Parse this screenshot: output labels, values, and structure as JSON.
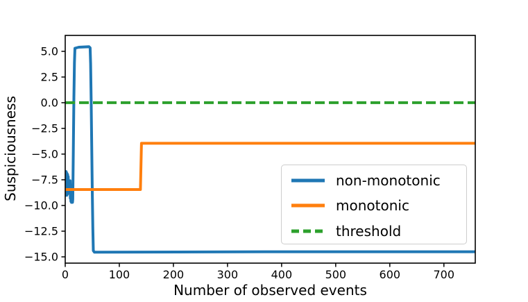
{
  "figure": {
    "background": "#ffffff",
    "spine_color": "#000000",
    "tick_color": "#000000"
  },
  "chart_data": {
    "type": "line",
    "title": "",
    "xlabel": "Number of observed events",
    "ylabel": "Suspiciousness",
    "xlim": [
      0,
      758
    ],
    "ylim": [
      -15.61,
      6.55
    ],
    "xticks": [
      0,
      100,
      200,
      300,
      400,
      500,
      600,
      700
    ],
    "xtick_labels": [
      "0",
      "100",
      "200",
      "300",
      "400",
      "500",
      "600",
      "700"
    ],
    "yticks": [
      5.0,
      2.5,
      0.0,
      -2.5,
      -5.0,
      -7.5,
      -10.0,
      -12.5,
      -15.0
    ],
    "ytick_labels": [
      "5.0",
      "2.5",
      "0.0",
      "−2.5",
      "−5.0",
      "−7.5",
      "−10.0",
      "−12.5",
      "−15.0"
    ],
    "grid": false,
    "legend": {
      "position": "inside center-right",
      "items": [
        {
          "label": "non-monotonic",
          "color": "#1f77b4",
          "dash": "solid"
        },
        {
          "label": "monotonic",
          "color": "#ff7f0e",
          "dash": "solid"
        },
        {
          "label": "threshold",
          "color": "#2ca02c",
          "dash": "dashed"
        }
      ]
    },
    "series": [
      {
        "name": "non-monotonic",
        "color": "#1f77b4",
        "style": "solid",
        "points": [
          [
            0,
            -8.4
          ],
          [
            0.5,
            -7.0
          ],
          [
            1,
            -9.0
          ],
          [
            1.5,
            -6.7
          ],
          [
            2,
            -8.8
          ],
          [
            2.5,
            -6.8
          ],
          [
            3,
            -9.0
          ],
          [
            3.5,
            -6.9
          ],
          [
            4,
            -8.9
          ],
          [
            4.5,
            -7.0
          ],
          [
            5,
            -8.8
          ],
          [
            5.5,
            -7.2
          ],
          [
            6,
            -8.5
          ],
          [
            7,
            -7.9
          ],
          [
            8,
            -8.3
          ],
          [
            9,
            -7.6
          ],
          [
            9.5,
            -9.3
          ],
          [
            10,
            -8.0
          ],
          [
            10.5,
            -9.6
          ],
          [
            11,
            -8.2
          ],
          [
            11.5,
            -9.7
          ],
          [
            12,
            -8.6
          ],
          [
            12.5,
            -9.6
          ],
          [
            13,
            -9.0
          ],
          [
            13.5,
            -9.7
          ],
          [
            14,
            -9.4
          ],
          [
            15,
            -4.5
          ],
          [
            16,
            0.5
          ],
          [
            17,
            3.9
          ],
          [
            18,
            5.3
          ],
          [
            25,
            5.4
          ],
          [
            44,
            5.45
          ],
          [
            46,
            5.35
          ],
          [
            47,
            3.8
          ],
          [
            48,
            0.2
          ],
          [
            49,
            -4.2
          ],
          [
            50,
            -8.6
          ],
          [
            51,
            -12.2
          ],
          [
            52,
            -14.4
          ],
          [
            54,
            -14.55
          ],
          [
            400,
            -14.5
          ],
          [
            758,
            -14.5
          ]
        ]
      },
      {
        "name": "monotonic",
        "color": "#ff7f0e",
        "style": "solid",
        "points": [
          [
            0,
            -8.45
          ],
          [
            139,
            -8.45
          ],
          [
            141,
            -3.95
          ],
          [
            758,
            -3.95
          ]
        ]
      },
      {
        "name": "threshold",
        "color": "#2ca02c",
        "style": "dashed",
        "points": [
          [
            0,
            0
          ],
          [
            758,
            0
          ]
        ]
      }
    ]
  }
}
